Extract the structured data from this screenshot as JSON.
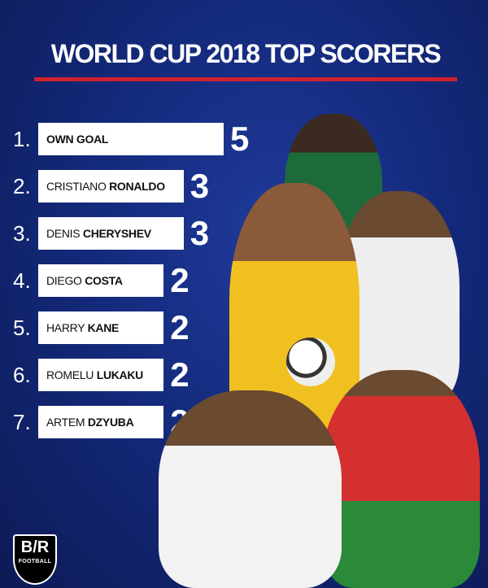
{
  "colors": {
    "background": "#142a7c",
    "accent_red": "#d0202e",
    "bar": "#ffffff"
  },
  "logo": {
    "text": "B/R FOOTBALL"
  },
  "chart_data": {
    "type": "bar",
    "orientation": "horizontal",
    "title": "WORLD CUP 2018 TOP SCORERS",
    "ranks": [
      "1.",
      "2.",
      "3.",
      "4.",
      "5.",
      "6.",
      "7."
    ],
    "categories": [
      {
        "first": "",
        "last": "OWN GOAL"
      },
      {
        "first": "CRISTIANO ",
        "last": "RONALDO"
      },
      {
        "first": "DENIS ",
        "last": "CHERYSHEV"
      },
      {
        "first": "DIEGO ",
        "last": "COSTA"
      },
      {
        "first": "HARRY ",
        "last": "KANE"
      },
      {
        "first": "ROMELU ",
        "last": "LUKAKU"
      },
      {
        "first": "ARTEM ",
        "last": "DZYUBA"
      }
    ],
    "values": [
      5,
      3,
      3,
      2,
      2,
      2,
      2
    ]
  }
}
